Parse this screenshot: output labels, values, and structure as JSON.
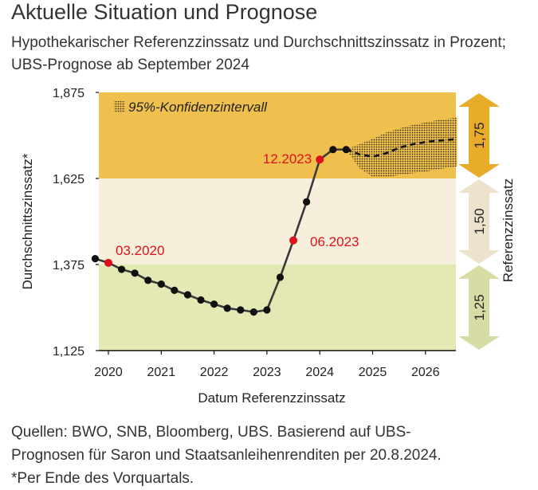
{
  "title": "Aktuelle Situation und Prognose",
  "subtitle": "Hypothekarischer Referenzzinssatz und Durchschnittszinssatz in Prozent; UBS-Prognose ab September 2024",
  "footer": {
    "line1": "Quellen: BWO, SNB, Bloomberg, UBS. Basierend auf UBS-",
    "line2": "Prognosen für Saron und Staatsanleihenrenditen per 20.8.2024.",
    "line3": "*Per Ende des Vorquartals."
  },
  "colors": {
    "band_top": "#f0c04e",
    "band_mid": "#f6efdc",
    "band_low": "#e4e8b4",
    "arrow_top": "#e8ac2a",
    "arrow_mid": "#ede3cc",
    "arrow_low": "#d6dca4",
    "line": "#3a3a3a",
    "highlight": "#e0101a",
    "dot": "#111111"
  },
  "chart_data": {
    "type": "line",
    "xlabel": "Datum Referenzzinssatz",
    "ylabel": "Durchschnittszinssatz*",
    "y2label": "Referenzzinssatz",
    "xlim": [
      2020,
      2026.6
    ],
    "ylim": [
      1.125,
      1.875
    ],
    "x_ticks": [
      2020,
      2021,
      2022,
      2023,
      2024,
      2025,
      2026
    ],
    "x_tick_labels": [
      "2020",
      "2021",
      "2022",
      "2023",
      "2024",
      "2025",
      "2026"
    ],
    "y_ticks": [
      1.125,
      1.375,
      1.625,
      1.875
    ],
    "y_tick_labels": [
      "1,125",
      "1,375",
      "1,625",
      "1,875"
    ],
    "bands": [
      {
        "label": "1,25",
        "from": 1.125,
        "to": 1.375,
        "color_key": "band_low"
      },
      {
        "label": "1,50",
        "from": 1.375,
        "to": 1.625,
        "color_key": "band_mid"
      },
      {
        "label": "1,75",
        "from": 1.625,
        "to": 1.875,
        "color_key": "band_top"
      }
    ],
    "confidence_label": "95%-Konfidenzintervall",
    "series": [
      {
        "name": "Durchschnittszinssatz",
        "x": [
          2019.75,
          2020.0,
          2020.25,
          2020.5,
          2020.75,
          2021.0,
          2021.25,
          2021.5,
          2021.75,
          2022.0,
          2022.25,
          2022.5,
          2022.75,
          2023.0,
          2023.25,
          2023.5,
          2023.75,
          2024.0,
          2024.25,
          2024.5
        ],
        "y": [
          1.392,
          1.38,
          1.361,
          1.35,
          1.329,
          1.318,
          1.3,
          1.287,
          1.272,
          1.26,
          1.248,
          1.243,
          1.237,
          1.243,
          1.338,
          1.445,
          1.557,
          1.68,
          1.709,
          1.709
        ],
        "markers": true
      },
      {
        "name": "UBS-Prognose",
        "style": "dashed",
        "x": [
          2024.5,
          2024.75,
          2025.0,
          2025.25,
          2025.5,
          2025.75,
          2026.0,
          2026.25,
          2026.5,
          2026.6
        ],
        "y": [
          1.709,
          1.695,
          1.688,
          1.698,
          1.714,
          1.724,
          1.731,
          1.735,
          1.738,
          1.74
        ]
      }
    ],
    "confidence_interval": {
      "x": [
        2024.5,
        2024.75,
        2025.0,
        2025.25,
        2025.5,
        2025.75,
        2026.0,
        2026.25,
        2026.5,
        2026.6
      ],
      "upper": [
        1.709,
        1.725,
        1.74,
        1.758,
        1.77,
        1.78,
        1.788,
        1.795,
        1.8,
        1.802
      ],
      "lower": [
        1.709,
        1.655,
        1.63,
        1.628,
        1.635,
        1.64,
        1.645,
        1.652,
        1.658,
        1.66
      ]
    },
    "annotations": [
      {
        "label": "03.2020",
        "x": 2020.0,
        "y": 1.38
      },
      {
        "label": "06.2023",
        "x": 2023.5,
        "y": 1.445
      },
      {
        "label": "12.2023",
        "x": 2024.0,
        "y": 1.68
      }
    ]
  }
}
